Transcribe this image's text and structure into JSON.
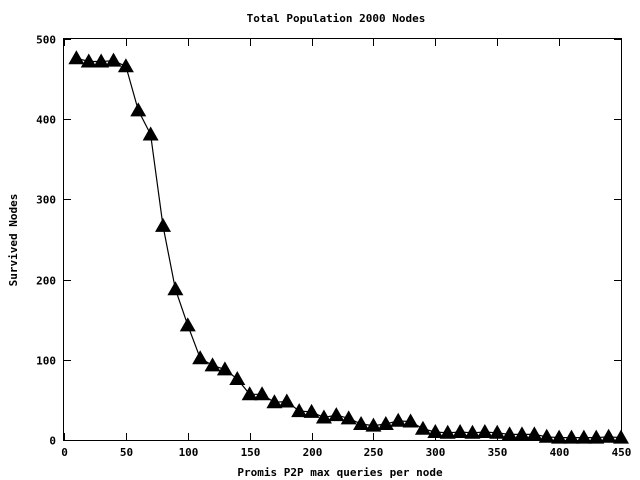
{
  "chart_data": {
    "type": "line",
    "title": "Total Population 2000 Nodes",
    "xlabel": "Promis P2P max queries per node",
    "ylabel": "Survived Nodes",
    "xlim": [
      0,
      450
    ],
    "ylim": [
      0,
      500
    ],
    "x_ticks": [
      0,
      50,
      100,
      150,
      200,
      250,
      300,
      350,
      400,
      450
    ],
    "y_ticks": [
      0,
      100,
      200,
      300,
      400,
      500
    ],
    "grid": false,
    "marker": "filled-triangle",
    "series": [
      {
        "color": "#000000",
        "x": [
          10,
          20,
          30,
          40,
          50,
          60,
          70,
          80,
          90,
          100,
          110,
          120,
          130,
          140,
          150,
          160,
          170,
          180,
          190,
          200,
          210,
          220,
          230,
          240,
          250,
          260,
          270,
          280,
          290,
          300,
          310,
          320,
          330,
          340,
          350,
          360,
          370,
          380,
          390,
          400,
          410,
          420,
          430,
          440,
          450
        ],
        "y": [
          476,
          472,
          472,
          473,
          466,
          411,
          381,
          267,
          188,
          143,
          102,
          93,
          88,
          76,
          57,
          57,
          47,
          48,
          36,
          35,
          28,
          31,
          27,
          20,
          18,
          20,
          24,
          23,
          14,
          10,
          9,
          10,
          9,
          10,
          9,
          7,
          7,
          7,
          4,
          3,
          3,
          3,
          3,
          4,
          3
        ]
      }
    ]
  }
}
